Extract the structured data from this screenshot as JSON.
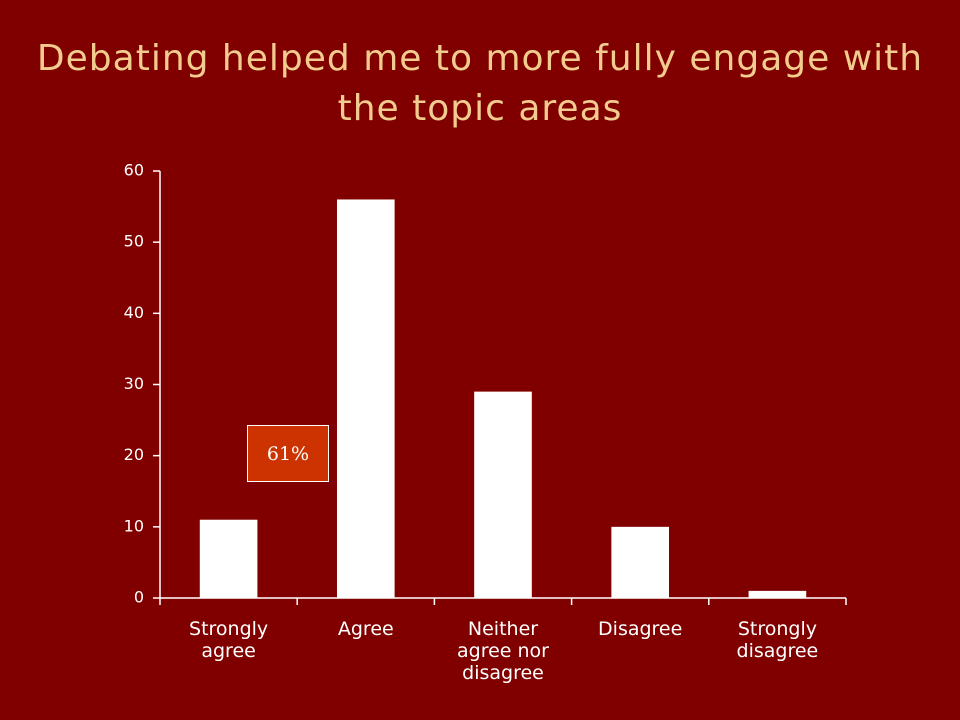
{
  "chart_data": {
    "type": "bar",
    "title": "Debating helped me to more fully engage with the topic areas",
    "categories": [
      "Strongly agree",
      "Agree",
      "Neither agree nor disagree",
      "Disagree",
      "Strongly disagree"
    ],
    "values": [
      11,
      56,
      29,
      10,
      1
    ],
    "color": "#ffffff",
    "ylim": [
      0,
      60
    ],
    "yticks": [
      0,
      10,
      20,
      30,
      40,
      50,
      60
    ],
    "grid": false,
    "annotation": "61%"
  }
}
